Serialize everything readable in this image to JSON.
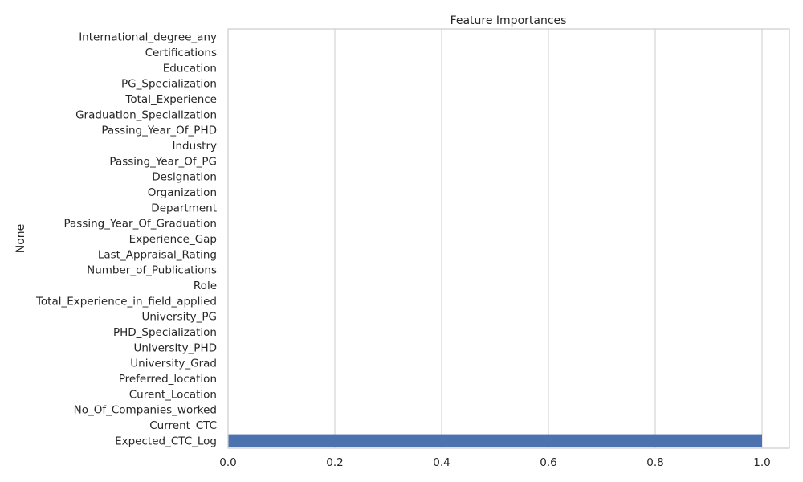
{
  "chart_data": {
    "type": "bar",
    "orientation": "horizontal",
    "title": "Feature Importances",
    "xlabel": "",
    "ylabel": "None",
    "categories": [
      "International_degree_any",
      "Certifications",
      "Education",
      "PG_Specialization",
      "Total_Experience",
      "Graduation_Specialization",
      "Passing_Year_Of_PHD",
      "Industry",
      "Passing_Year_Of_PG",
      "Designation",
      "Organization",
      "Department",
      "Passing_Year_Of_Graduation",
      "Experience_Gap",
      "Last_Appraisal_Rating",
      "Number_of_Publications",
      "Role",
      "Total_Experience_in_field_applied",
      "University_PG",
      "PHD_Specialization",
      "University_PHD",
      "University_Grad",
      "Preferred_location",
      "Curent_Location",
      "No_Of_Companies_worked",
      "Current_CTC",
      "Expected_CTC_Log"
    ],
    "values": [
      0,
      0,
      0,
      0,
      0,
      0,
      0,
      0,
      0,
      0,
      0,
      0,
      0,
      0,
      0,
      0,
      0,
      0,
      0,
      0,
      0,
      0,
      0,
      0,
      0,
      0,
      1.0
    ],
    "xlim": [
      0,
      1.05
    ],
    "xticks": [
      "0.0",
      "0.2",
      "0.4",
      "0.6",
      "0.8",
      "1.0"
    ],
    "grid": "x",
    "bar_color": "#4c72b0"
  }
}
